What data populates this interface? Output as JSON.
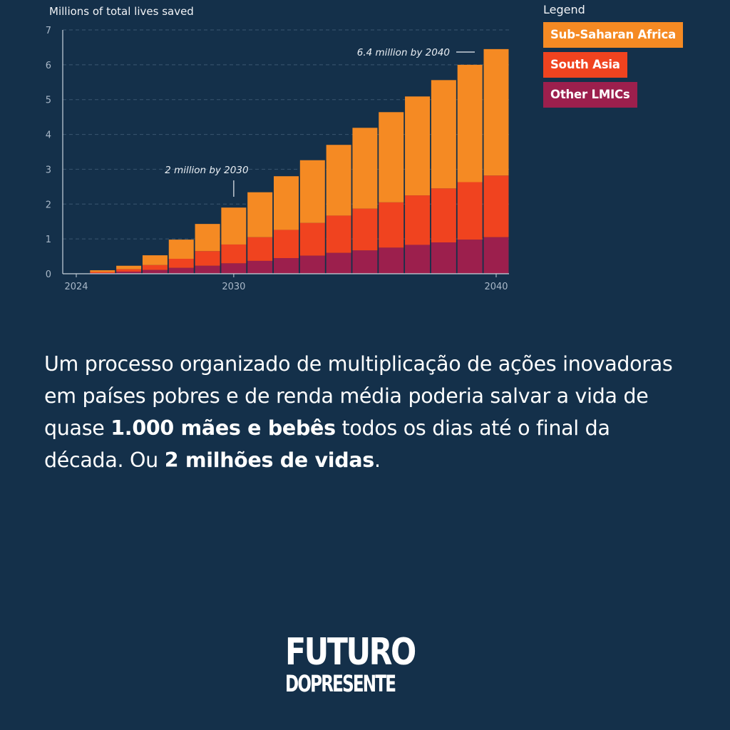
{
  "chart_data": {
    "type": "bar",
    "stacked": true,
    "ylabel": "Millions of total lives saved",
    "ylim": [
      0,
      7
    ],
    "yticks": [
      "0",
      "1",
      "2",
      "3",
      "4",
      "5",
      "6",
      "7"
    ],
    "xticks": [
      "2024",
      "2030",
      "2040"
    ],
    "x": [
      2024,
      2025,
      2026,
      2027,
      2028,
      2029,
      2030,
      2031,
      2032,
      2033,
      2034,
      2035,
      2036,
      2037,
      2038,
      2039,
      2040
    ],
    "series": [
      {
        "name": "Other LMICs",
        "color": "#9c1f4d",
        "values": [
          0.0,
          0.02,
          0.06,
          0.11,
          0.17,
          0.23,
          0.3,
          0.37,
          0.45,
          0.52,
          0.6,
          0.67,
          0.75,
          0.83,
          0.9,
          0.98,
          1.05
        ]
      },
      {
        "name": "South Asia",
        "color": "#f0431f",
        "values": [
          0.0,
          0.03,
          0.07,
          0.14,
          0.26,
          0.42,
          0.54,
          0.68,
          0.81,
          0.94,
          1.07,
          1.2,
          1.3,
          1.42,
          1.55,
          1.65,
          1.77
        ]
      },
      {
        "name": "Sub-Saharan Africa",
        "color": "#f58a23",
        "values": [
          0.0,
          0.05,
          0.1,
          0.28,
          0.55,
          0.78,
          1.06,
          1.29,
          1.54,
          1.8,
          2.03,
          2.32,
          2.59,
          2.84,
          3.11,
          3.37,
          3.63
        ]
      }
    ],
    "annotations": [
      {
        "text": "2 million by 2030",
        "x": 2030,
        "y": 1.9
      },
      {
        "text": "6.4 million by 2040",
        "x": 2040,
        "y": 6.45
      }
    ],
    "grid": true
  },
  "legend": {
    "title": "Legend",
    "items": [
      {
        "label": "Sub-Saharan Africa",
        "color": "#f58a23",
        "text_color": "#ffffff"
      },
      {
        "label": "South Asia",
        "color": "#f0431f",
        "text_color": "#ffffff"
      },
      {
        "label": "Other LMICs",
        "color": "#9c1f4d",
        "text_color": "#ffffff"
      }
    ]
  },
  "body": {
    "part1": "Um processo organizado de multiplicação de ações inovadoras em países pobres e de renda média poderia salvar a vida de quase ",
    "bold1": "1.000 mães e bebês",
    "part2": " todos os dias até o final da década. Ou ",
    "bold2": "2 milhões de vidas",
    "part3": "."
  },
  "brand": {
    "line1": "FUTURO",
    "line2": "DOPRESENTE"
  },
  "colors": {
    "background": "#14304a",
    "axis": "#c8d2dc",
    "grid": "#3a5670",
    "text": "#ffffff"
  }
}
